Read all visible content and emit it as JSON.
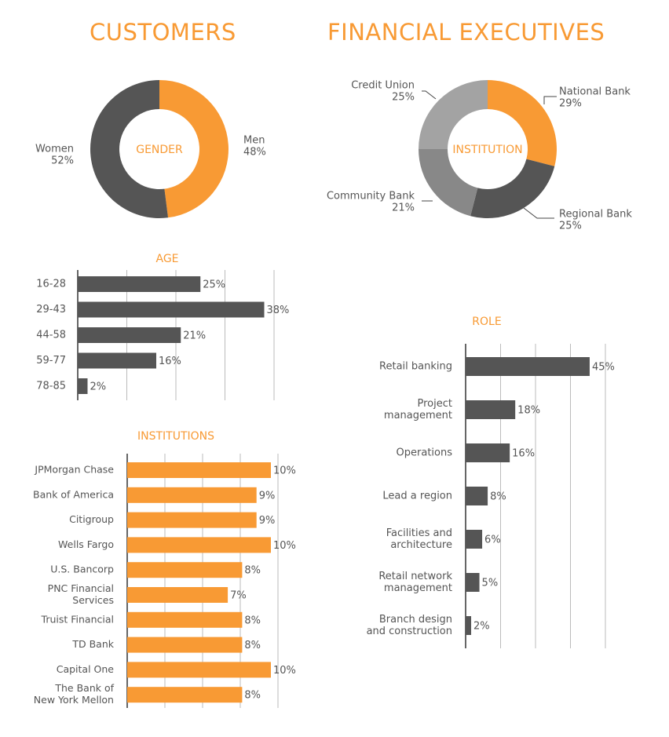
{
  "headings": {
    "left": "CUSTOMERS",
    "right": "FINANCIAL EXECUTIVES"
  },
  "colors": {
    "orange": "#f89a34",
    "dark_gray": "#555555",
    "mid_gray": "#888888",
    "light_gray": "#a3a3a3",
    "grid": "#bbbbbb",
    "text": "#555555"
  },
  "chart_data": [
    {
      "id": "gender",
      "type": "pie",
      "title": "GENDER",
      "slices": [
        {
          "label": "Men",
          "value": 48,
          "color": "#f89a34"
        },
        {
          "label": "Women",
          "value": 52,
          "color": "#555555"
        }
      ]
    },
    {
      "id": "institution",
      "type": "pie",
      "title": "INSTITUTION",
      "slices": [
        {
          "label": "National Bank",
          "value": 29,
          "color": "#f89a34"
        },
        {
          "label": "Regional Bank",
          "value": 25,
          "color": "#555555"
        },
        {
          "label": "Community Bank",
          "value": 21,
          "color": "#888888"
        },
        {
          "label": "Credit Union",
          "value": 25,
          "color": "#a3a3a3"
        }
      ]
    },
    {
      "id": "age",
      "type": "bar",
      "title": "AGE",
      "categories": [
        "16-28",
        "29-43",
        "44-58",
        "59-77",
        "78-85"
      ],
      "values": [
        25,
        38,
        21,
        16,
        2
      ],
      "bar_color": "#555555"
    },
    {
      "id": "role",
      "type": "bar",
      "title": "ROLE",
      "categories": [
        [
          "Retail banking"
        ],
        [
          "Project",
          "management"
        ],
        [
          "Operations"
        ],
        [
          "Lead a region"
        ],
        [
          "Facilities and",
          "architecture"
        ],
        [
          "Retail network",
          "management"
        ],
        [
          "Branch design",
          "and construction"
        ]
      ],
      "values": [
        45,
        18,
        16,
        8,
        6,
        5,
        2
      ],
      "bar_color": "#555555"
    },
    {
      "id": "institutions",
      "type": "bar",
      "title": "INSTITUTIONS",
      "categories": [
        [
          "JPMorgan Chase"
        ],
        [
          "Bank of America"
        ],
        [
          "Citigroup"
        ],
        [
          "Wells Fargo"
        ],
        [
          "U.S. Bancorp"
        ],
        [
          "PNC Financial",
          "Services"
        ],
        [
          "Truist Financial"
        ],
        [
          "TD Bank"
        ],
        [
          "Capital One"
        ],
        [
          "The Bank of",
          "New York Mellon"
        ]
      ],
      "values": [
        10,
        9,
        9,
        10,
        8,
        7,
        8,
        8,
        10,
        8
      ],
      "bar_color": "#f89a34"
    }
  ]
}
